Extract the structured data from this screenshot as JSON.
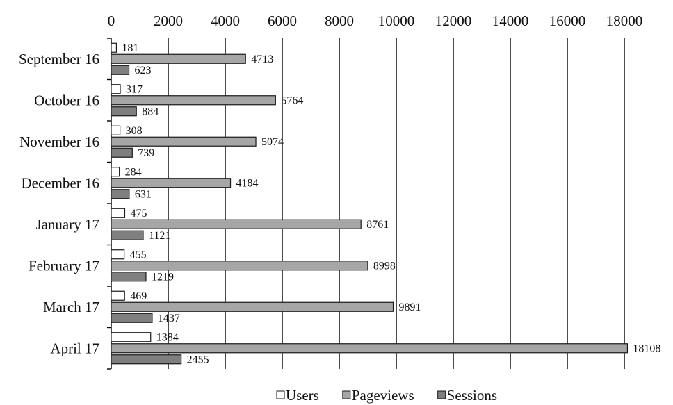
{
  "chart_data": {
    "type": "bar",
    "orientation": "horizontal",
    "categories": [
      "September 16",
      "October 16",
      "November 16",
      "December 16",
      "January 17",
      "February 17",
      "March 17",
      "April 17"
    ],
    "series": [
      {
        "name": "Users",
        "values": [
          181,
          317,
          308,
          284,
          475,
          455,
          469,
          1384
        ],
        "color": "#ffffff"
      },
      {
        "name": "Pageviews",
        "values": [
          4713,
          5764,
          5074,
          4184,
          8761,
          8998,
          9891,
          18108
        ],
        "color": "#a6a6a6"
      },
      {
        "name": "Sessions",
        "values": [
          623,
          884,
          739,
          631,
          1121,
          1219,
          1437,
          2455
        ],
        "color": "#7f7f7f"
      }
    ],
    "xticks": [
      "0",
      "2000",
      "4000",
      "6000",
      "8000",
      "10000",
      "12000",
      "14000",
      "16000",
      "18000"
    ],
    "xlim": [
      0,
      18000
    ],
    "grid": true,
    "legend": "bottom"
  }
}
